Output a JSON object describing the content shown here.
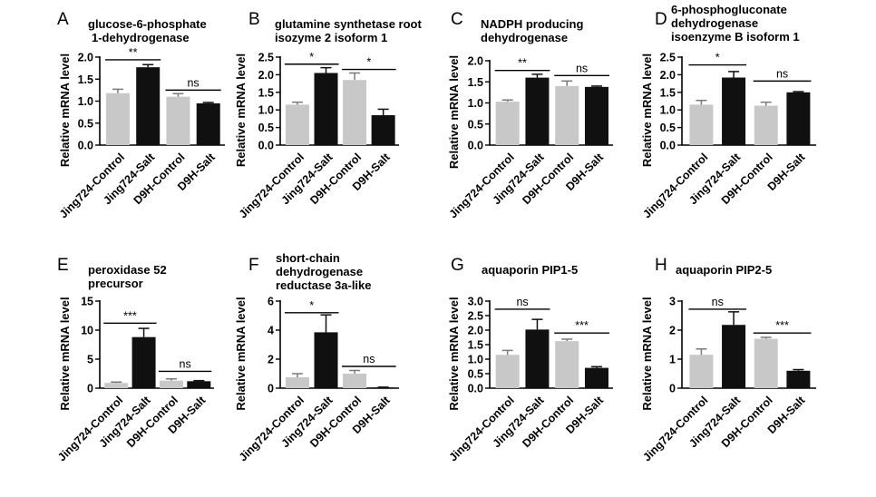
{
  "chart_data": [
    {
      "panel": "A",
      "type": "bar",
      "title": [
        "glucose-6-phosphate",
        "1-dehydrogenase"
      ],
      "ylabel": "Relative mRNA level",
      "categories": [
        "Jing724-Control",
        "Jing724-Salt",
        "D9H-Control",
        "D9H-Salt"
      ],
      "values": [
        1.18,
        1.77,
        1.1,
        0.95
      ],
      "errors": [
        0.09,
        0.06,
        0.07,
        0.02
      ],
      "ylim": [
        0,
        2.0
      ],
      "yticks": [
        "0.0",
        "0.5",
        "1.0",
        "1.5",
        "2.0"
      ],
      "significance": [
        {
          "label": "**",
          "from": 0,
          "to": 1,
          "y": 1.94
        },
        {
          "label": "ns",
          "from": 2,
          "to": 3,
          "y": 1.25
        }
      ]
    },
    {
      "panel": "B",
      "type": "bar",
      "title": [
        "glutamine synthetase root",
        "isozyme 2 isoform 1"
      ],
      "ylabel": "Relative mRNA level",
      "categories": [
        "Jing724-Control",
        "Jing724-Salt",
        "D9H-Control",
        "D9H-Salt"
      ],
      "values": [
        1.15,
        2.05,
        1.85,
        0.85
      ],
      "errors": [
        0.07,
        0.15,
        0.2,
        0.17
      ],
      "ylim": [
        0,
        2.5
      ],
      "yticks": [
        "0.0",
        "0.5",
        "1.0",
        "1.5",
        "2.0",
        "2.5"
      ],
      "significance": [
        {
          "label": "*",
          "from": 0,
          "to": 1,
          "y": 2.3
        },
        {
          "label": "*",
          "from": 2,
          "to": 3,
          "y": 2.15
        }
      ]
    },
    {
      "panel": "C",
      "type": "bar",
      "title": [
        "NADPH producing",
        "dehydrogenase"
      ],
      "ylabel": "Relative mRNA level",
      "categories": [
        "Jing724-Control",
        "Jing724-Salt",
        "D9H-Control",
        "D9H-Salt"
      ],
      "values": [
        1.03,
        1.6,
        1.4,
        1.38
      ],
      "errors": [
        0.04,
        0.08,
        0.12,
        0.02
      ],
      "ylim": [
        0,
        2.0
      ],
      "yticks": [
        "0.0",
        "0.5",
        "1.0",
        "1.5",
        "2.0"
      ],
      "significance": [
        {
          "label": "**",
          "from": 0,
          "to": 1,
          "y": 1.77
        },
        {
          "label": "ns",
          "from": 2,
          "to": 3,
          "y": 1.65
        }
      ]
    },
    {
      "panel": "D",
      "type": "bar",
      "title": [
        "6-phosphogluconate",
        "dehydrogenase",
        "isoenzyme B isoform 1"
      ],
      "ylabel": "Relative mRNA level",
      "categories": [
        "Jing724-Control",
        "Jing724-Salt",
        "D9H-Control",
        "D9H-Salt"
      ],
      "values": [
        1.15,
        1.92,
        1.12,
        1.5
      ],
      "errors": [
        0.12,
        0.17,
        0.1,
        0.02
      ],
      "ylim": [
        0,
        2.5
      ],
      "yticks": [
        "0.0",
        "0.5",
        "1.0",
        "1.5",
        "2.0",
        "2.5"
      ],
      "significance": [
        {
          "label": "*",
          "from": 0,
          "to": 1,
          "y": 2.28
        },
        {
          "label": "ns",
          "from": 2,
          "to": 3,
          "y": 1.82
        }
      ]
    },
    {
      "panel": "E",
      "type": "bar",
      "title": [
        "peroxidase 52",
        "precursor"
      ],
      "ylabel": "Relative mRNA level",
      "categories": [
        "Jing724-Control",
        "Jing724-Salt",
        "D9H-Control",
        "D9H-Salt"
      ],
      "values": [
        0.9,
        8.8,
        1.3,
        1.2
      ],
      "errors": [
        0.15,
        1.5,
        0.3,
        0.1
      ],
      "ylim": [
        0,
        15
      ],
      "yticks": [
        "0",
        "5",
        "10",
        "15"
      ],
      "significance": [
        {
          "label": "***",
          "from": 0,
          "to": 1,
          "y": 11.2
        },
        {
          "label": "ns",
          "from": 2,
          "to": 3,
          "y": 2.9
        }
      ]
    },
    {
      "panel": "F",
      "type": "bar",
      "title": [
        "short-chain",
        "dehydrogenase",
        "reductase 3a-like"
      ],
      "ylabel": "Relative mRNA level",
      "categories": [
        "Jing724-Control",
        "Jing724-Salt",
        "D9H-Control",
        "D9H-Salt"
      ],
      "values": [
        0.75,
        3.85,
        1.0,
        0.05
      ],
      "errors": [
        0.25,
        1.2,
        0.22,
        0.02
      ],
      "ylim": [
        0,
        6
      ],
      "yticks": [
        "0",
        "2",
        "4",
        "6"
      ],
      "significance": [
        {
          "label": "*",
          "from": 0,
          "to": 1,
          "y": 5.2
        },
        {
          "label": "ns",
          "from": 2,
          "to": 3,
          "y": 1.5
        }
      ]
    },
    {
      "panel": "G",
      "type": "bar",
      "title": [
        "aquaporin PIP1-5"
      ],
      "ylabel": "Relative mRNA level",
      "categories": [
        "Jing724-Control",
        "Jing724-Salt",
        "D9H-Control",
        "D9H-Salt"
      ],
      "values": [
        1.15,
        2.02,
        1.62,
        0.7
      ],
      "errors": [
        0.15,
        0.35,
        0.07,
        0.04
      ],
      "ylim": [
        0,
        3.0
      ],
      "yticks": [
        "0.0",
        "0.5",
        "1.0",
        "1.5",
        "2.0",
        "2.5",
        "3.0"
      ],
      "significance": [
        {
          "label": "ns",
          "from": 0,
          "to": 1,
          "y": 2.72
        },
        {
          "label": "***",
          "from": 2,
          "to": 3,
          "y": 1.9
        }
      ]
    },
    {
      "panel": "H",
      "type": "bar",
      "title": [
        "aquaporin PIP2-5"
      ],
      "ylabel": "Relative mRNA level",
      "categories": [
        "Jing724-Control",
        "Jing724-Salt",
        "D9H-Control",
        "D9H-Salt"
      ],
      "values": [
        1.15,
        2.18,
        1.7,
        0.6
      ],
      "errors": [
        0.2,
        0.45,
        0.05,
        0.04
      ],
      "ylim": [
        0,
        3
      ],
      "yticks": [
        "0",
        "1",
        "2",
        "3"
      ],
      "significance": [
        {
          "label": "ns",
          "from": 0,
          "to": 1,
          "y": 2.72
        },
        {
          "label": "***",
          "from": 2,
          "to": 3,
          "y": 1.9
        }
      ]
    }
  ],
  "colors": {
    "control": "#c8c8c8",
    "salt": "#101010",
    "axis": "#000000"
  }
}
